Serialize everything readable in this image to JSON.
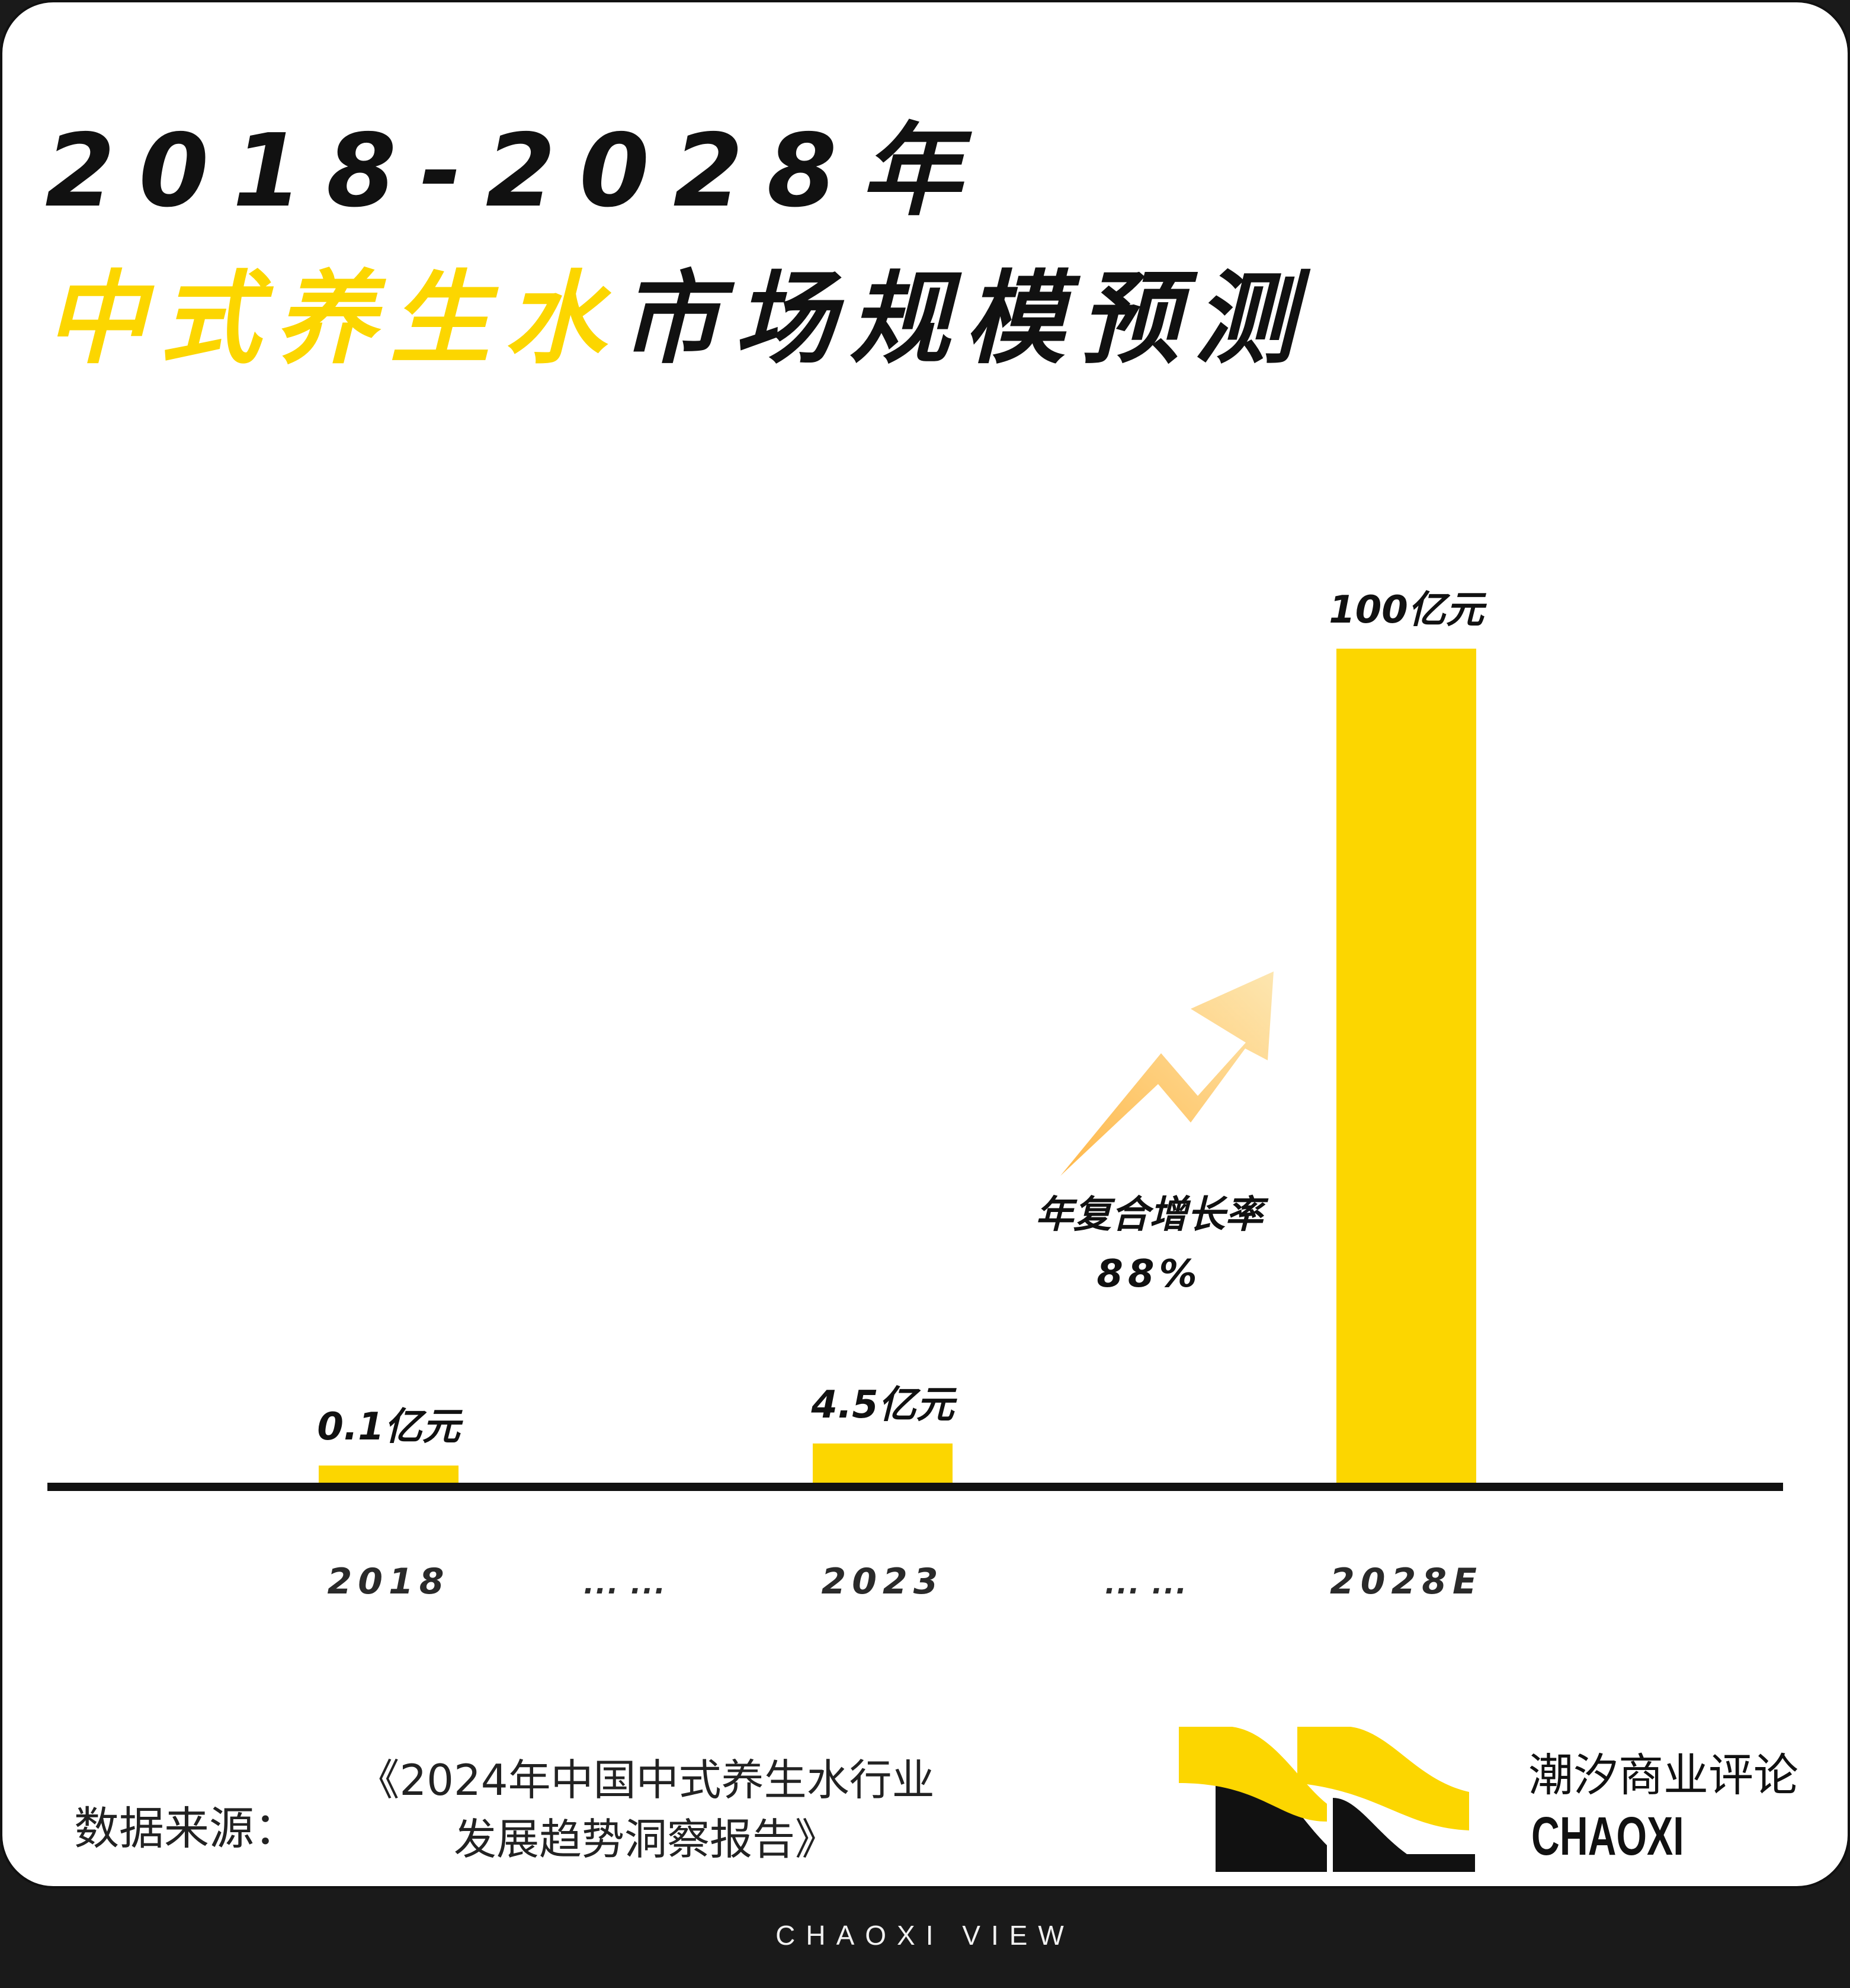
{
  "title": {
    "line1": "2018-2028年",
    "line2_highlight": "中式养生水",
    "line2_rest": "市场规模预测"
  },
  "chart_data": {
    "type": "bar",
    "categories": [
      "2018",
      "... ...",
      "2023",
      "... ...",
      "2028E"
    ],
    "values": [
      0.1,
      null,
      4.5,
      null,
      100
    ],
    "value_labels": [
      "0.1亿元",
      "",
      "4.5亿元",
      "",
      "100亿元"
    ],
    "unit": "亿元",
    "annotation": {
      "text": "年复合增长率",
      "value": "88%"
    },
    "colors": {
      "bar": "#fcd600",
      "axis": "#111111",
      "arrow_start": "#ffb84a",
      "arrow_end": "#fde6b0"
    }
  },
  "source": {
    "label": "数据来源：",
    "title_line1": "《2024年中国中式养生水行业",
    "title_line2": "发展趋势洞察报告》"
  },
  "brand": {
    "name_cn": "潮汐商业评论",
    "name_en": "CHAOXI",
    "footer": "CHAOXI VIEW"
  }
}
